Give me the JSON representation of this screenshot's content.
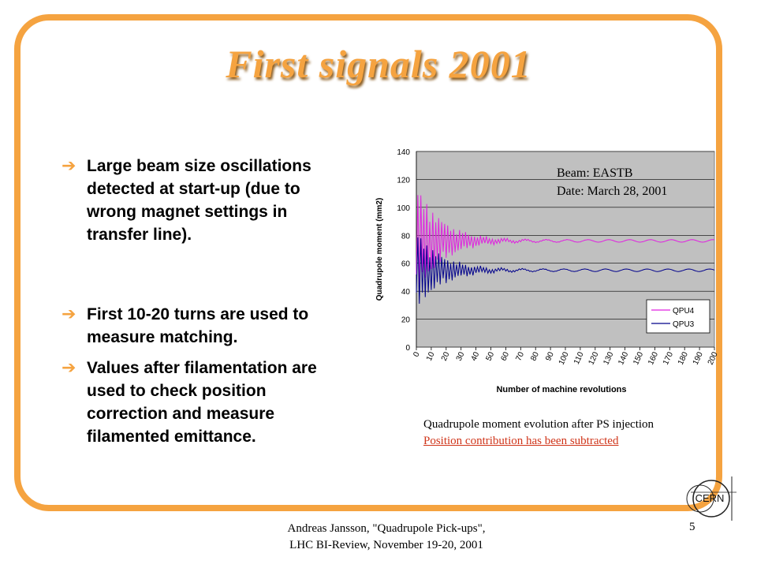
{
  "slide": {
    "title": "First signals 2001",
    "bullets": [
      {
        "lines": [
          "Large beam size oscillations",
          "detected at start-up (due to",
          "wrong magnet settings in",
          "transfer line)."
        ]
      },
      {
        "lines": [
          "First 10-20 turns are used to",
          "measure matching."
        ]
      },
      {
        "lines": [
          "Values after filamentation are",
          "used to check position",
          "correction and measure",
          "filamented emittance."
        ]
      }
    ],
    "caption": "Quadrupole moment evolution after PS injection",
    "caption_note": "Position contribution has been subtracted",
    "footer_line1": "Andreas Jansson, \"Quadrupole Pick-ups\",",
    "footer_line2": "LHC BI-Review, November 19-20, 2001",
    "page_number": "5",
    "logo_text": "CERN"
  },
  "colors": {
    "accent": "#f5a340",
    "plot_bg": "#c0c0c0",
    "qpu4": "#e020e0",
    "qpu3": "#00008b",
    "note": "#d0351a"
  },
  "chart_data": {
    "type": "line",
    "xlabel": "Number of machine revolutions",
    "ylabel": "Quadrupole moment (mm2)",
    "ylim": [
      0,
      140
    ],
    "yticks": [
      0,
      20,
      40,
      60,
      80,
      100,
      120,
      140
    ],
    "xlim": [
      0,
      200
    ],
    "xticks": [
      0,
      10,
      20,
      30,
      40,
      50,
      60,
      70,
      80,
      90,
      100,
      110,
      120,
      130,
      140,
      150,
      160,
      170,
      180,
      190,
      200
    ],
    "grid": "horizontal",
    "legend_position": "lower-right",
    "annotation_lines": [
      "Beam: EASTB",
      "Date: March 28, 2001"
    ],
    "series": [
      {
        "name": "QPU4",
        "color": "#e020e0",
        "settled": 76,
        "initial_amplitude": 40,
        "settle_turns": 55
      },
      {
        "name": "QPU3",
        "color": "#00008b",
        "settled": 55,
        "initial_amplitude": 28,
        "settle_turns": 55
      }
    ]
  }
}
